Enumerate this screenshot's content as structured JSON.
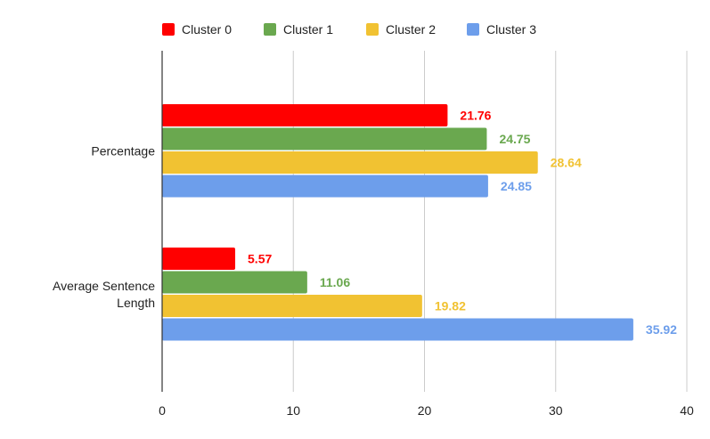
{
  "chart_data": {
    "type": "bar",
    "orientation": "horizontal",
    "categories": [
      "Percentage",
      "Average Sentence Length"
    ],
    "category_lines": [
      [
        "Percentage"
      ],
      [
        "Average Sentence",
        "Length"
      ]
    ],
    "series": [
      {
        "name": "Cluster 0",
        "color": "#ff0000",
        "values": [
          21.76,
          5.57
        ],
        "labels": [
          "21.76",
          "5.57"
        ]
      },
      {
        "name": "Cluster 1",
        "color": "#6aa84f",
        "values": [
          24.75,
          11.06
        ],
        "labels": [
          "24.75",
          "11.06"
        ]
      },
      {
        "name": "Cluster 2",
        "color": "#f1c232",
        "values": [
          28.64,
          19.82
        ],
        "labels": [
          "28.64",
          "19.82"
        ]
      },
      {
        "name": "Cluster 3",
        "color": "#6d9eeb",
        "values": [
          24.85,
          35.92
        ],
        "labels": [
          "24.85",
          "35.92"
        ]
      }
    ],
    "x_ticks": [
      "0",
      "10",
      "20",
      "30",
      "40"
    ],
    "xlim": [
      0,
      40
    ],
    "grid": "vertical",
    "legend": "top-center",
    "title": "",
    "xlabel": "",
    "ylabel": ""
  }
}
